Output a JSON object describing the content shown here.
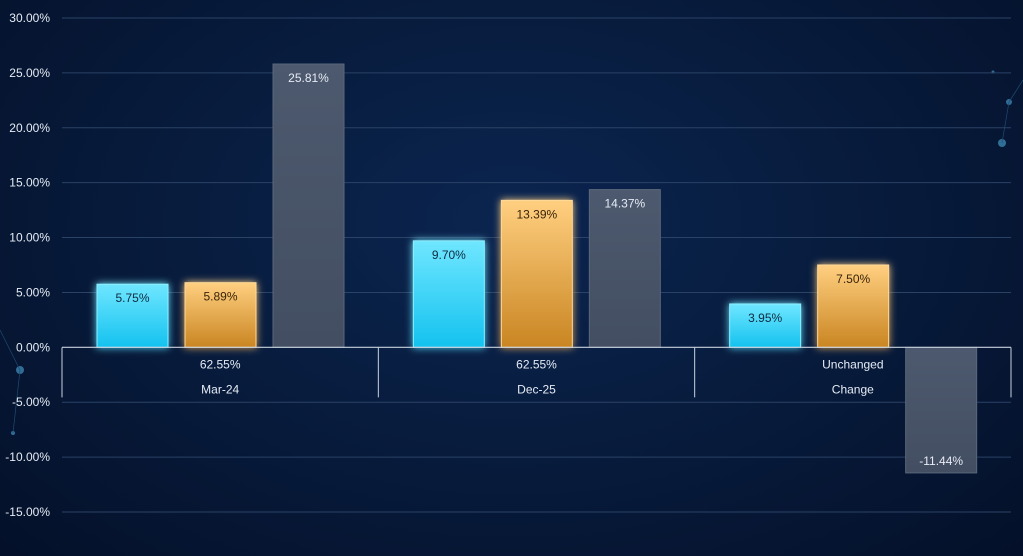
{
  "chart_data": {
    "type": "bar",
    "categories": [
      "Mar-24",
      "Dec-25",
      "Change"
    ],
    "category_sublabels": [
      "62.55%",
      "62.55%",
      "Unchanged"
    ],
    "series": [
      {
        "name": "Series 1",
        "color": "#2fd0f5",
        "values": [
          5.75,
          9.7,
          3.95
        ],
        "labels": [
          "5.75%",
          "9.70%",
          "3.95%"
        ]
      },
      {
        "name": "Series 2",
        "color": "#e8a94a",
        "values": [
          5.89,
          13.39,
          7.5
        ],
        "labels": [
          "5.89%",
          "13.39%",
          "7.50%"
        ]
      },
      {
        "name": "Series 3",
        "color": "#48546a",
        "values": [
          25.81,
          14.37,
          -11.44
        ],
        "labels": [
          "25.81%",
          "14.37%",
          "-11.44%"
        ]
      }
    ],
    "yticks": [
      "30.00%",
      "25.00%",
      "20.00%",
      "15.00%",
      "10.00%",
      "5.00%",
      "0.00%",
      "-5.00%",
      "-10.00%",
      "-15.00%"
    ],
    "ytick_values": [
      30,
      25,
      20,
      15,
      10,
      5,
      0,
      -5,
      -10,
      -15
    ],
    "ylim": [
      -15,
      30
    ],
    "grid": true,
    "legend": "none",
    "title": "",
    "xlabel": "",
    "ylabel": ""
  }
}
